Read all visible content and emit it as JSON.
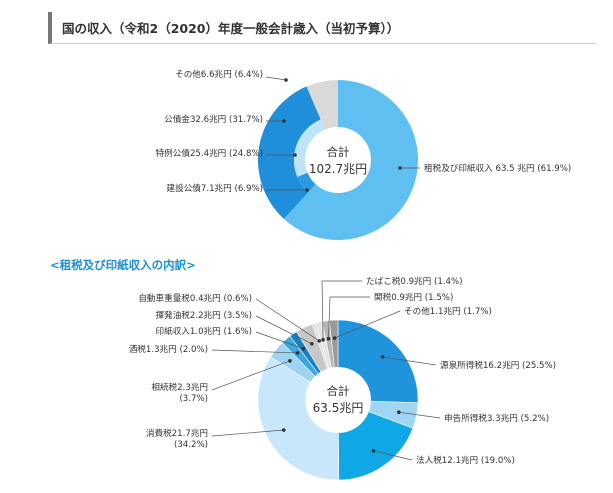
{
  "header": {
    "title": "国の収入（令和2（2020）年度一般会計歳入（当初予算））"
  },
  "section2": {
    "title": "<租税及び印紙収入の内訳>"
  },
  "chart_data": [
    {
      "type": "pie",
      "center_label": [
        "合計",
        "102.7兆円"
      ],
      "categories": [
        "租税及び印紙収入",
        "建設公債",
        "特例公債",
        "公債金",
        "その他"
      ],
      "values": [
        63.5,
        7.1,
        25.4,
        32.6,
        6.6
      ],
      "percents": [
        61.9,
        6.9,
        24.8,
        31.7,
        6.4
      ],
      "labels": [
        "租税及び印紙収入 63.5 兆円 (61.9%)",
        "建設公債7.1兆円 (6.9%)",
        "特例公債25.4兆円 (24.8%)",
        "公債金32.6兆円 (31.7%)",
        "その他6.6兆円 (6.4%)"
      ],
      "colors": [
        "#5ebff0",
        "#2a9be2",
        "#bfe4f8",
        "#1f8fdb",
        "#d9d9d9"
      ],
      "note": "公債金 (32.6) is the outer ring segment; 特例公債 and 建設公債 are its inner sub-segments"
    },
    {
      "type": "pie",
      "center_label": [
        "合計",
        "63.5兆円"
      ],
      "categories": [
        "源泉所得税",
        "申告所得税",
        "法人税",
        "消費税",
        "相続税",
        "酒税",
        "印紙収入",
        "揮発油税",
        "自動車重量税",
        "たばこ税",
        "関税",
        "その他"
      ],
      "values": [
        16.2,
        3.3,
        12.1,
        21.7,
        2.3,
        1.3,
        1.0,
        2.2,
        0.4,
        0.9,
        0.9,
        1.1
      ],
      "percents": [
        25.5,
        5.2,
        19.0,
        34.2,
        3.7,
        2.0,
        1.6,
        3.5,
        0.6,
        1.4,
        1.5,
        1.7
      ],
      "labels": [
        "源泉所得税16.2兆円 (25.5%)",
        "申告所得税3.3兆円 (5.2%)",
        "法人税12.1兆円 (19.0%)",
        [
          "消費税21.7兆円",
          "(34.2%)"
        ],
        [
          "相続税2.3兆円",
          "(3.7%)"
        ],
        "酒税1.3兆円 (2.0%)",
        "印紙収入1.0兆円 (1.6%)",
        "揮発油税2.2兆円 (3.5%)",
        "自動車重量税0.4兆円 (0.6%)",
        "たばこ税0.9兆円 (1.4%)",
        "関税0.9兆円 (1.5%)",
        "その他1.1兆円 (1.7%)"
      ],
      "colors": [
        "#1f93db",
        "#9fd6f4",
        "#10a7e6",
        "#c9e7fa",
        "#9ed3f2",
        "#3aa6e4",
        "#1a7fc7",
        "#c7c7c7",
        "#dcdcdc",
        "#e4e4e4",
        "#b5b5b5",
        "#9a9a9a"
      ]
    }
  ]
}
